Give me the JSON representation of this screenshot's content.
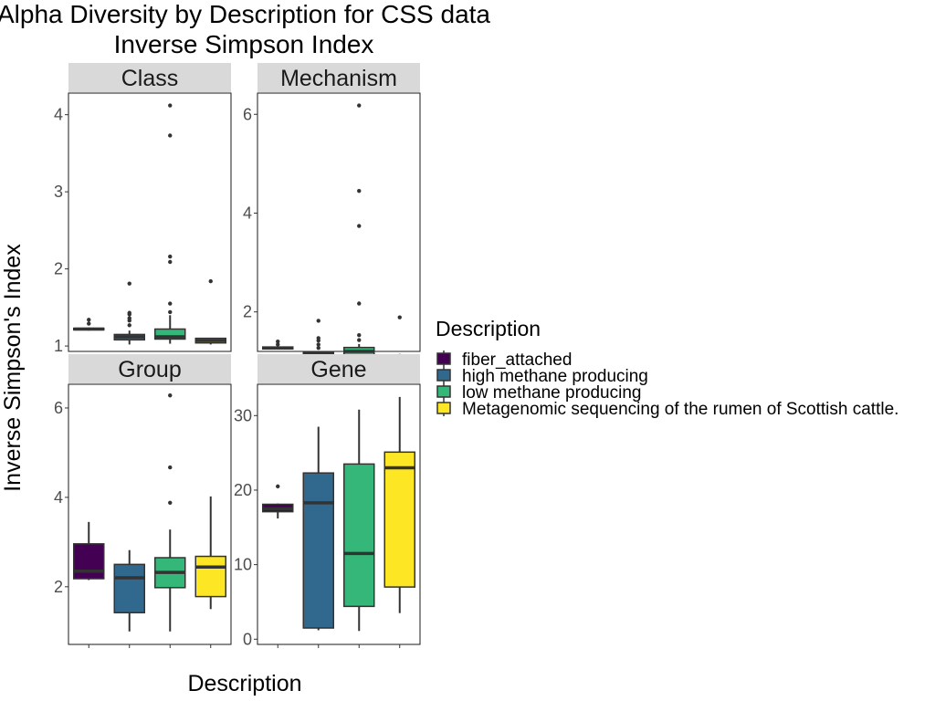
{
  "chart_data": {
    "type": "box",
    "title": "Alpha Diversity by Description for CSS data",
    "subtitle": "Inverse Simpson Index",
    "xlabel": "Description",
    "ylabel": "Inverse Simpson's Index",
    "grid": false,
    "legend": {
      "title": "Description",
      "placement": "right",
      "entries": [
        {
          "label": "fiber_attached",
          "color": "#440154"
        },
        {
          "label": "high methane producing",
          "color": "#31688E"
        },
        {
          "label": "low methane producing",
          "color": "#35B779"
        },
        {
          "label": "Metagenomic sequencing of the rumen of Scottish cattle.",
          "color": "#FDE725"
        }
      ]
    },
    "facets": [
      {
        "name": "Class",
        "ylim": [
          0.93,
          4.28
        ],
        "yticks": [
          1,
          2,
          3,
          4
        ],
        "boxes": [
          {
            "series": "fiber_attached",
            "min": 1.2,
            "q1": 1.21,
            "median": 1.22,
            "q3": 1.23,
            "max": 1.24,
            "outliers": [
              1.29,
              1.34
            ]
          },
          {
            "series": "high methane producing",
            "min": 1.02,
            "q1": 1.08,
            "median": 1.12,
            "q3": 1.15,
            "max": 1.2,
            "outliers": [
              1.27,
              1.33,
              1.36,
              1.41,
              1.43,
              1.81
            ]
          },
          {
            "series": "low methane producing",
            "min": 1.03,
            "q1": 1.09,
            "median": 1.12,
            "q3": 1.22,
            "max": 1.4,
            "outliers": [
              1.44,
              1.55,
              2.09,
              2.16,
              3.73,
              4.12
            ]
          },
          {
            "series": "Metagenomic sequencing of the rumen of Scottish cattle.",
            "min": 1.02,
            "q1": 1.04,
            "median": 1.07,
            "q3": 1.1,
            "max": 1.1,
            "outliers": [
              1.84
            ]
          }
        ]
      },
      {
        "name": "Mechanism",
        "ylim": [
          1.2,
          6.43
        ],
        "yticks": [
          2,
          4,
          6
        ],
        "boxes": [
          {
            "series": "fiber_attached",
            "min": 1.24,
            "q1": 1.25,
            "median": 1.27,
            "q3": 1.29,
            "max": 1.3,
            "outliers": [
              1.34,
              1.4
            ]
          },
          {
            "series": "high methane producing",
            "min": 1.1,
            "q1": 1.13,
            "median": 1.17,
            "q3": 1.19,
            "max": 1.2,
            "outliers": [
              1.27,
              1.34,
              1.42,
              1.47,
              1.82
            ]
          },
          {
            "series": "low methane producing",
            "min": 1.1,
            "q1": 1.13,
            "median": 1.2,
            "q3": 1.28,
            "max": 1.35,
            "outliers": [
              1.43,
              1.53,
              2.17,
              3.74,
              4.45,
              6.18
            ]
          },
          {
            "series": "Metagenomic sequencing of the rumen of Scottish cattle.",
            "min": 1.06,
            "q1": 1.07,
            "median": 1.09,
            "q3": 1.12,
            "max": 1.15,
            "outliers": [
              1.89
            ]
          }
        ]
      },
      {
        "name": "Group",
        "ylim": [
          0.71,
          6.53
        ],
        "yticks": [
          2,
          4,
          6
        ],
        "boxes": [
          {
            "series": "fiber_attached",
            "min": 2.15,
            "q1": 2.18,
            "median": 2.35,
            "q3": 2.96,
            "max": 3.45,
            "outliers": []
          },
          {
            "series": "high methane producing",
            "min": 1.0,
            "q1": 1.42,
            "median": 2.2,
            "q3": 2.5,
            "max": 2.82,
            "outliers": []
          },
          {
            "series": "low methane producing",
            "min": 1.0,
            "q1": 1.98,
            "median": 2.32,
            "q3": 2.65,
            "max": 3.28,
            "outliers": [
              3.88,
              4.67,
              6.28
            ]
          },
          {
            "series": "Metagenomic sequencing of the rumen of Scottish cattle.",
            "min": 1.5,
            "q1": 1.78,
            "median": 2.44,
            "q3": 2.68,
            "max": 4.02,
            "outliers": []
          }
        ]
      },
      {
        "name": "Gene",
        "ylim": [
          -0.7,
          34.2
        ],
        "yticks": [
          0,
          10,
          20,
          30
        ],
        "boxes": [
          {
            "series": "fiber_attached",
            "min": 16.2,
            "q1": 17.1,
            "median": 17.5,
            "q3": 18.1,
            "max": 18.2,
            "outliers": [
              20.5
            ]
          },
          {
            "series": "high methane producing",
            "min": 1.2,
            "q1": 1.5,
            "median": 18.3,
            "q3": 22.3,
            "max": 28.5,
            "outliers": []
          },
          {
            "series": "low methane producing",
            "min": 1.1,
            "q1": 4.4,
            "median": 11.5,
            "q3": 23.5,
            "max": 30.8,
            "outliers": []
          },
          {
            "series": "Metagenomic sequencing of the rumen of Scottish cattle.",
            "min": 3.5,
            "q1": 7.0,
            "median": 23.0,
            "q3": 25.1,
            "max": 32.5,
            "outliers": []
          }
        ]
      }
    ]
  }
}
